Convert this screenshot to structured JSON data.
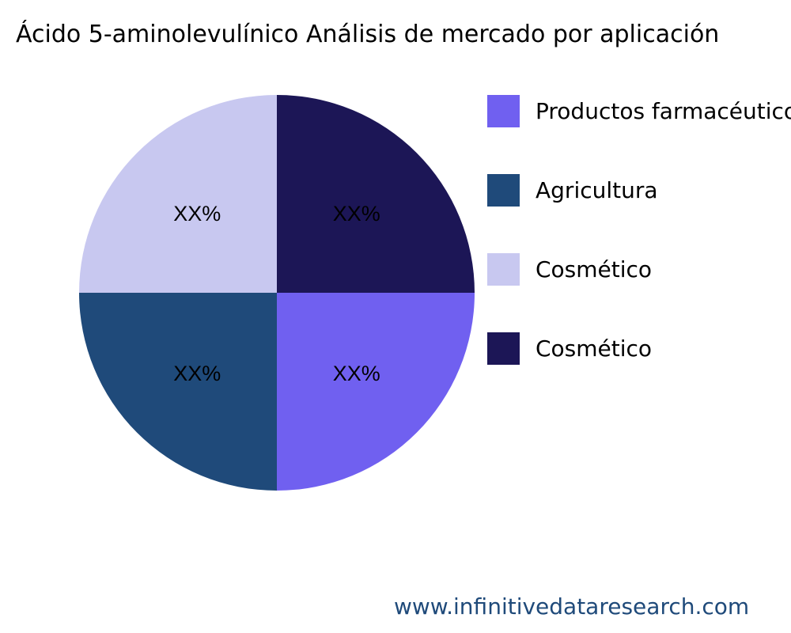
{
  "chart_data": {
    "type": "pie",
    "title": "Ácido 5-aminolevulínico Análisis de mercado por aplicación",
    "slices": [
      {
        "name": "Productos farmacéuticos",
        "value": 25,
        "label": "XX%",
        "color": "#7060f0"
      },
      {
        "name": "Agricultura",
        "value": 25,
        "label": "XX%",
        "color": "#1f4a7a"
      },
      {
        "name": "Cosmético",
        "value": 25,
        "label": "XX%",
        "color": "#c8c8f0"
      },
      {
        "name": "Cosmético",
        "value": 25,
        "label": "XX%",
        "color": "#1c1656"
      }
    ],
    "start_angle": "3 o'clock",
    "direction": "clockwise",
    "legend_position": "right"
  },
  "footer": "www.infinitivedataresearch.com"
}
